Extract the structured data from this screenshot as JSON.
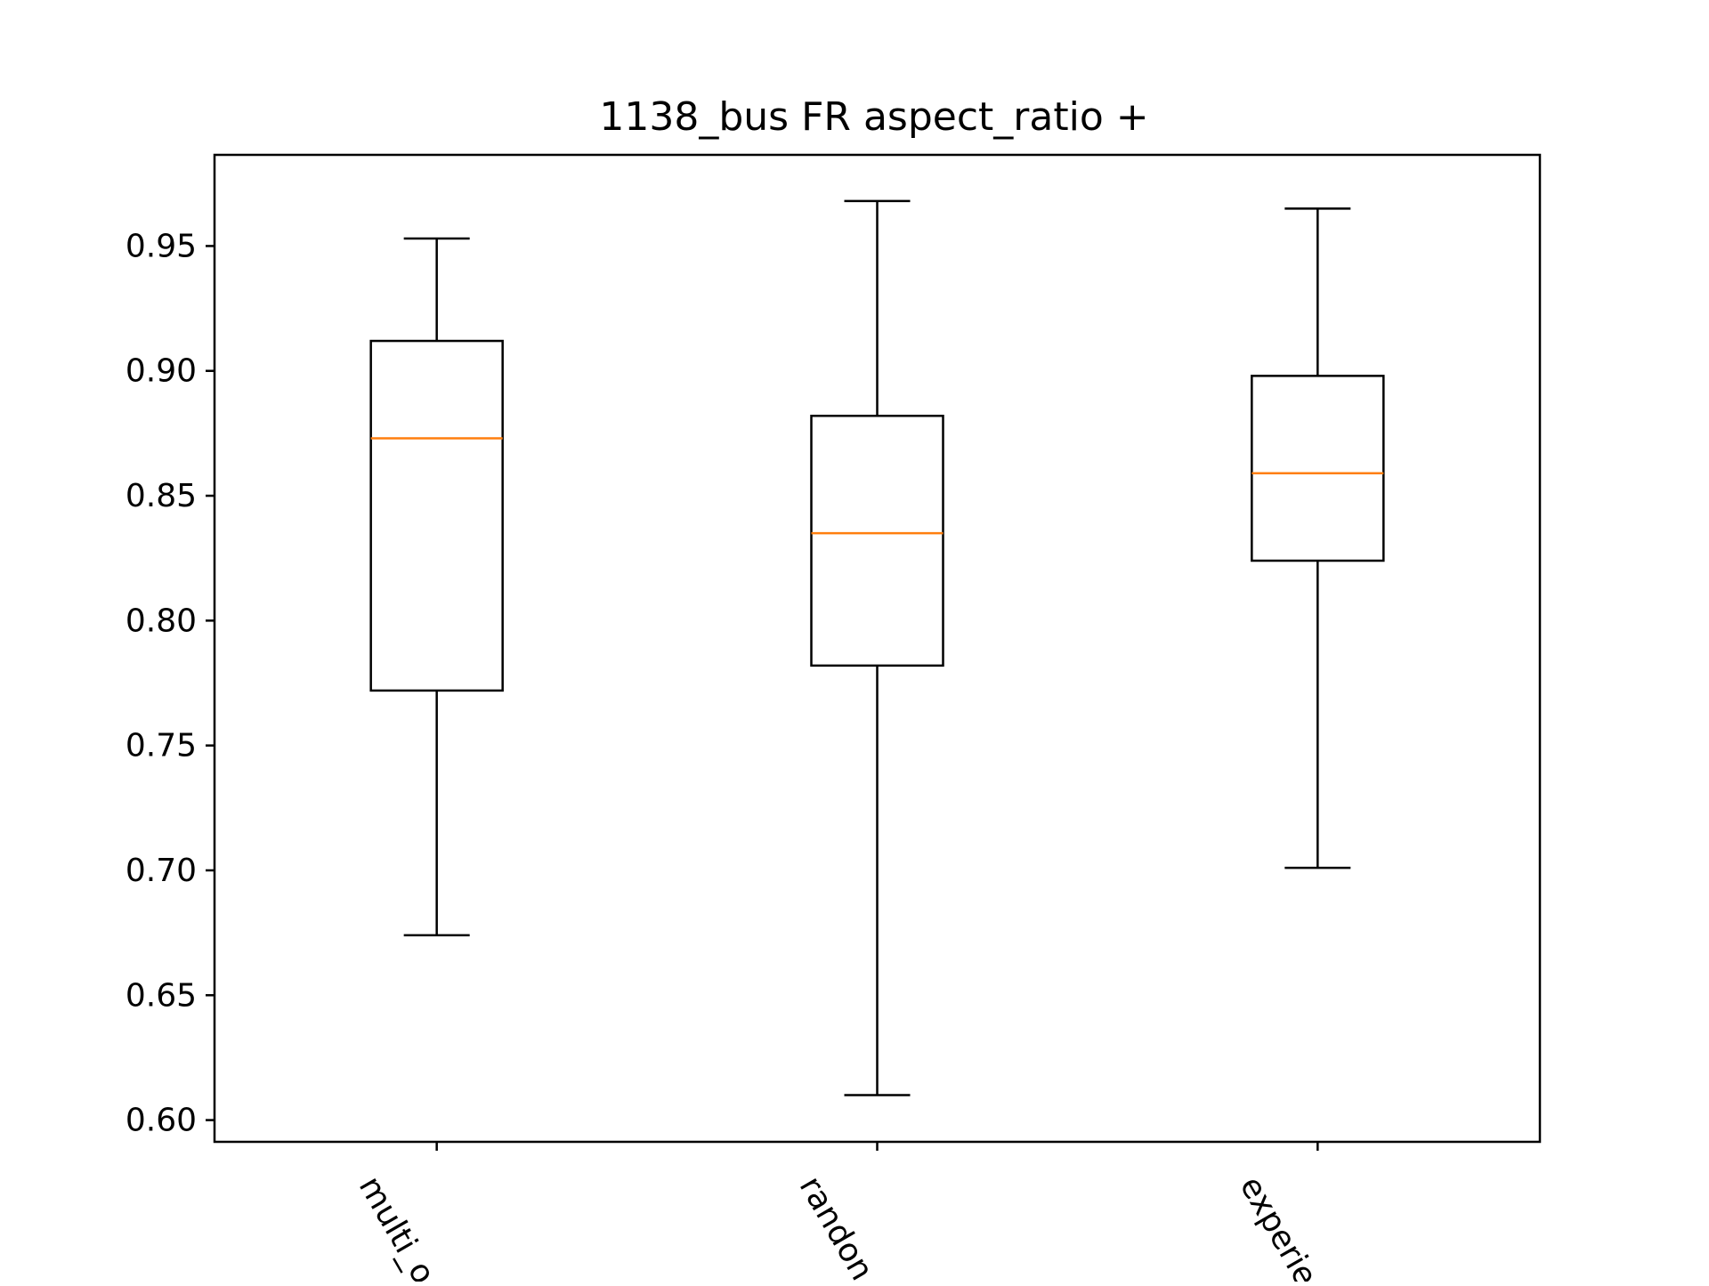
{
  "chart_data": {
    "type": "box",
    "title": "1138_bus FR aspect_ratio +",
    "xlabel": "",
    "ylabel": "",
    "ylim": [
      0.5913,
      0.9865
    ],
    "yticks": [
      "0.60",
      "0.65",
      "0.70",
      "0.75",
      "0.80",
      "0.85",
      "0.90",
      "0.95"
    ],
    "categories": [
      "multi_o",
      "randon",
      "experie"
    ],
    "boxes": [
      {
        "whisker_low": 0.674,
        "q1": 0.772,
        "median": 0.873,
        "q3": 0.912,
        "whisker_high": 0.953
      },
      {
        "whisker_low": 0.61,
        "q1": 0.782,
        "median": 0.835,
        "q3": 0.882,
        "whisker_high": 0.968
      },
      {
        "whisker_low": 0.701,
        "q1": 0.824,
        "median": 0.859,
        "q3": 0.898,
        "whisker_high": 0.965
      }
    ],
    "grid": false,
    "colors": {
      "box": "#000000",
      "median": "#ff7f0e"
    }
  }
}
